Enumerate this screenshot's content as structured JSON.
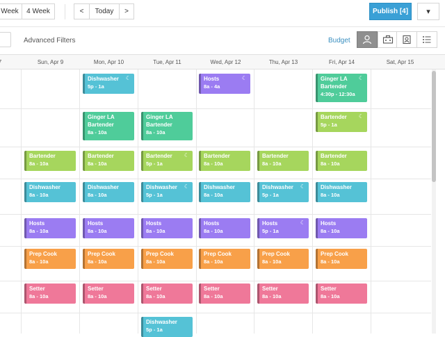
{
  "toolbar": {
    "week_label": "Week",
    "four_week_label": "4 Week",
    "prev_label": "<",
    "today_label": "Today",
    "next_label": ">",
    "publish_label": "Publish [4]",
    "dropdown_label": "▾"
  },
  "filters": {
    "advanced_label": "Advanced Filters",
    "budget_label": "Budget"
  },
  "days": [
    {
      "label": "7"
    },
    {
      "label": "Sun, Apr 9"
    },
    {
      "label": "Mon, Apr 10"
    },
    {
      "label": "Tue, Apr 11"
    },
    {
      "label": "Wed, Apr 12"
    },
    {
      "label": "Thu, Apr 13"
    },
    {
      "label": "Fri, Apr 14"
    },
    {
      "label": "Sat, Apr 15"
    }
  ],
  "colors": {
    "dishwasher": "#55c2d6",
    "hosts": "#9b7cf2",
    "ginger": "#4fcc9a",
    "bartender": "#a6d65d",
    "prep": "#f8a049",
    "setter": "#ef7899",
    "accent": "#3aa0d6"
  },
  "shifts": [
    {
      "day": 2,
      "row": 0,
      "title": "Dishwasher",
      "time": "5p - 1a",
      "color": "dishwasher",
      "moon": "☾"
    },
    {
      "day": 4,
      "row": 0,
      "title": "Hosts",
      "time": "8a - 4a",
      "color": "hosts",
      "moon": "☾"
    },
    {
      "day": 6,
      "row": 0,
      "title": "Ginger LA",
      "subtitle": "Bartender",
      "time": "4:30p - 12:30a",
      "color": "ginger",
      "moon": "☾"
    },
    {
      "day": 2,
      "row": 1,
      "title": "Ginger LA",
      "subtitle": "Bartender",
      "time": "8a - 10a",
      "color": "ginger"
    },
    {
      "day": 3,
      "row": 1,
      "title": "Ginger LA",
      "subtitle": "Bartender",
      "time": "8a - 10a",
      "color": "ginger"
    },
    {
      "day": 6,
      "row": 1,
      "title": "Bartender",
      "time": "5p - 1a",
      "color": "bartender",
      "moon": "☾"
    },
    {
      "day": 1,
      "row": 2,
      "title": "Bartender",
      "time": "8a - 10a",
      "color": "bartender"
    },
    {
      "day": 2,
      "row": 2,
      "title": "Bartender",
      "time": "8a - 10a",
      "color": "bartender"
    },
    {
      "day": 3,
      "row": 2,
      "title": "Bartender",
      "time": "5p - 1a",
      "color": "bartender",
      "moon": "☾"
    },
    {
      "day": 4,
      "row": 2,
      "title": "Bartender",
      "time": "8a - 10a",
      "color": "bartender"
    },
    {
      "day": 5,
      "row": 2,
      "title": "Bartender",
      "time": "8a - 10a",
      "color": "bartender"
    },
    {
      "day": 6,
      "row": 2,
      "title": "Bartender",
      "time": "8a - 10a",
      "color": "bartender"
    },
    {
      "day": 1,
      "row": 3,
      "title": "Dishwasher",
      "time": "8a - 10a",
      "color": "dishwasher"
    },
    {
      "day": 2,
      "row": 3,
      "title": "Dishwasher",
      "time": "8a - 10a",
      "color": "dishwasher"
    },
    {
      "day": 3,
      "row": 3,
      "title": "Dishwasher",
      "time": "5p - 1a",
      "color": "dishwasher",
      "moon": "☾"
    },
    {
      "day": 4,
      "row": 3,
      "title": "Dishwasher",
      "time": "8a - 10a",
      "color": "dishwasher"
    },
    {
      "day": 5,
      "row": 3,
      "title": "Dishwasher",
      "time": "5p - 1a",
      "color": "dishwasher",
      "moon": "☾"
    },
    {
      "day": 6,
      "row": 3,
      "title": "Dishwasher",
      "time": "8a - 10a",
      "color": "dishwasher"
    },
    {
      "day": 1,
      "row": 4,
      "title": "Hosts",
      "time": "8a - 10a",
      "color": "hosts"
    },
    {
      "day": 2,
      "row": 4,
      "title": "Hosts",
      "time": "8a - 10a",
      "color": "hosts"
    },
    {
      "day": 3,
      "row": 4,
      "title": "Hosts",
      "time": "8a - 10a",
      "color": "hosts"
    },
    {
      "day": 4,
      "row": 4,
      "title": "Hosts",
      "time": "8a - 10a",
      "color": "hosts"
    },
    {
      "day": 5,
      "row": 4,
      "title": "Hosts",
      "time": "5p - 1a",
      "color": "hosts",
      "moon": "☾"
    },
    {
      "day": 6,
      "row": 4,
      "title": "Hosts",
      "time": "8a - 10a",
      "color": "hosts"
    },
    {
      "day": 1,
      "row": 5,
      "title": "Prep Cook",
      "time": "8a - 10a",
      "color": "prep"
    },
    {
      "day": 2,
      "row": 5,
      "title": "Prep Cook",
      "time": "8a - 10a",
      "color": "prep"
    },
    {
      "day": 3,
      "row": 5,
      "title": "Prep Cook",
      "time": "8a - 10a",
      "color": "prep"
    },
    {
      "day": 4,
      "row": 5,
      "title": "Prep Cook",
      "time": "8a - 10a",
      "color": "prep"
    },
    {
      "day": 5,
      "row": 5,
      "title": "Prep Cook",
      "time": "8a - 10a",
      "color": "prep"
    },
    {
      "day": 6,
      "row": 5,
      "title": "Prep Cook",
      "time": "8a - 10a",
      "color": "prep"
    },
    {
      "day": 1,
      "row": 6,
      "title": "Setter",
      "time": "8a - 10a",
      "color": "setter"
    },
    {
      "day": 2,
      "row": 6,
      "title": "Setter",
      "time": "8a - 10a",
      "color": "setter"
    },
    {
      "day": 3,
      "row": 6,
      "title": "Setter",
      "time": "8a - 10a",
      "color": "setter"
    },
    {
      "day": 4,
      "row": 6,
      "title": "Setter",
      "time": "8a - 10a",
      "color": "setter"
    },
    {
      "day": 5,
      "row": 6,
      "title": "Setter",
      "time": "8a - 10a",
      "color": "setter"
    },
    {
      "day": 6,
      "row": 6,
      "title": "Setter",
      "time": "8a - 10a",
      "color": "setter"
    },
    {
      "day": 3,
      "row": 7,
      "title": "Dishwasher",
      "time": "5p - 1a",
      "color": "dishwasher"
    }
  ],
  "icons": {
    "person": "person-icon",
    "briefcase": "briefcase-icon",
    "badge": "id-badge-icon",
    "list": "list-icon"
  }
}
